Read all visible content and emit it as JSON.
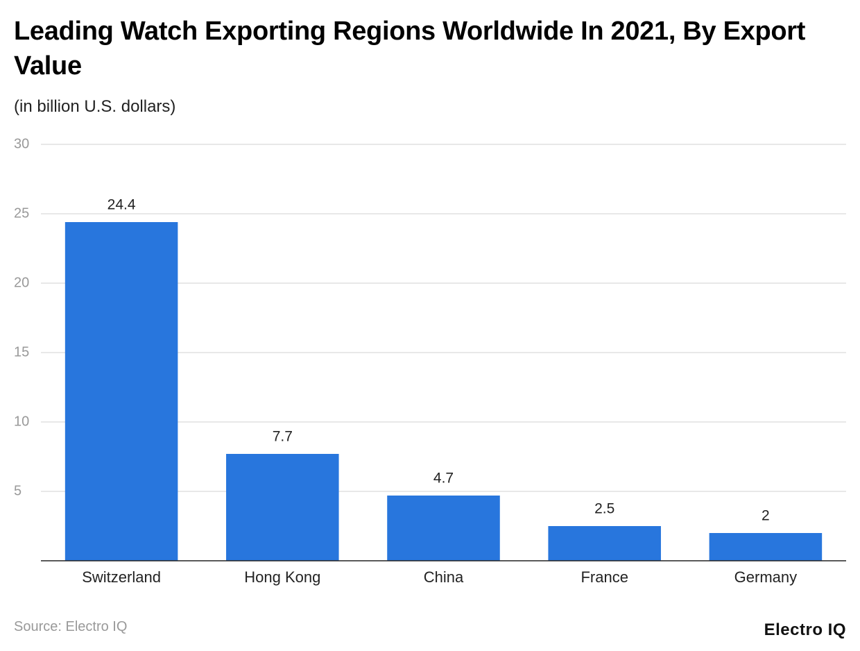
{
  "chart_data": {
    "type": "bar",
    "title": "Leading Watch Exporting Regions Worldwide In 2021, By Export Value",
    "subtitle": "(in billion U.S. dollars)",
    "categories": [
      "Switzerland",
      "Hong Kong",
      "China",
      "France",
      "Germany"
    ],
    "values": [
      24.4,
      7.7,
      4.7,
      2.5,
      2
    ],
    "color": "#2876dd",
    "ylim": [
      0,
      30
    ],
    "yticks": [
      5,
      10,
      15,
      20,
      25,
      30
    ],
    "grid": true,
    "source": "Source: Electro IQ",
    "brand": "Electro IQ"
  }
}
